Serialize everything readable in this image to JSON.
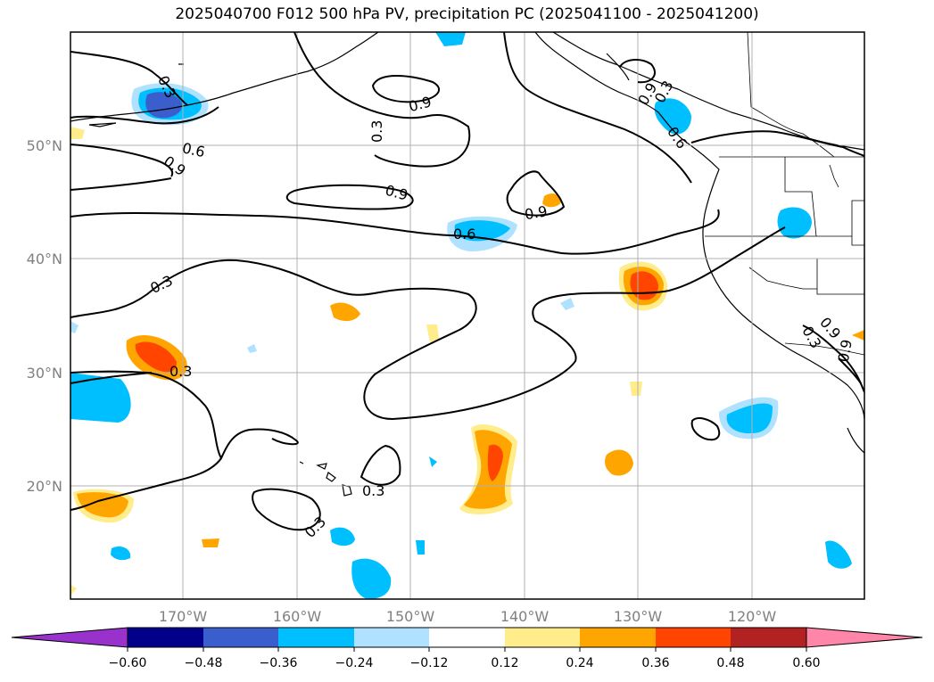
{
  "title": "2025040700 F012 500 hPa PV, precipitation PC (2025041100 - 2025041200)",
  "latitude_labels": [
    "50°N",
    "40°N",
    "30°N",
    "20°N"
  ],
  "longitude_labels": [
    "170°W",
    "160°W",
    "150°W",
    "140°W",
    "130°W",
    "120°W"
  ],
  "contour_labels": [
    "0.3",
    "0.6",
    "0.9",
    "0.9",
    "0.3",
    "0.9",
    "0.6",
    "0.9",
    "0.6",
    "0.9",
    "0.3",
    "0.3",
    "0.3",
    "0.3",
    "0.3",
    "0.3",
    "0.9",
    "0.9"
  ],
  "colorbar": {
    "tick_labels": [
      "−0.60",
      "−0.48",
      "−0.36",
      "−0.24",
      "−0.12",
      "0.12",
      "0.24",
      "0.36",
      "0.48",
      "0.60"
    ],
    "colors": [
      "#9932cc",
      "#00008b",
      "#3a5fcd",
      "#00bfff",
      "#b0e2ff",
      "#ffffff",
      "#ffec8b",
      "#ffa500",
      "#ff4500",
      "#b22222",
      "#ff86a8"
    ]
  }
}
